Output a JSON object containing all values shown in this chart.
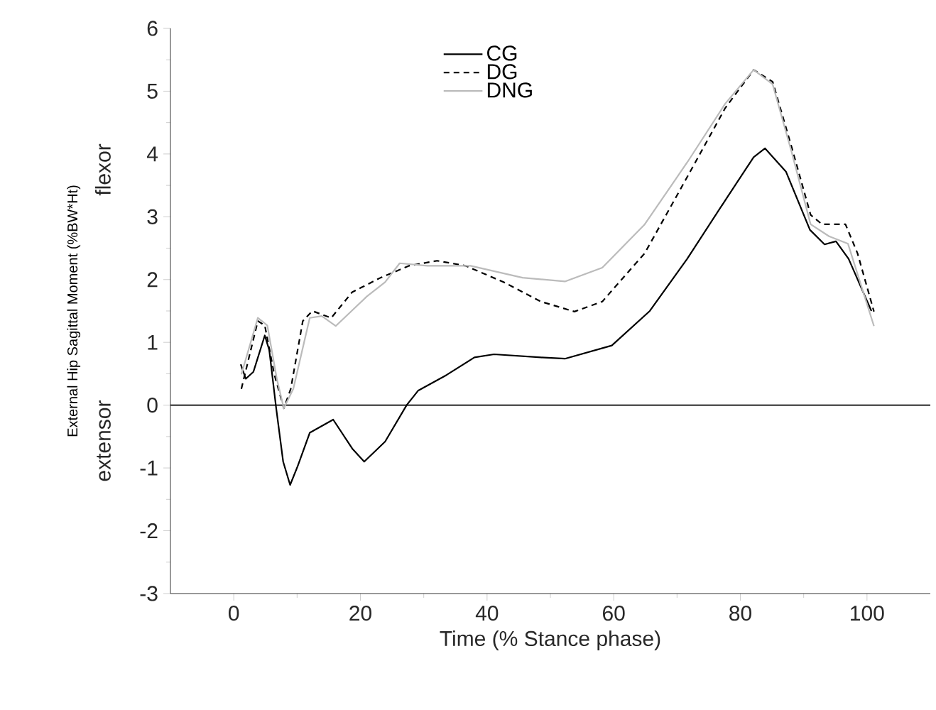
{
  "chart_data": {
    "type": "line",
    "xlabel": "Time (% Stance phase)",
    "ylabel": "External Hip Sagittal Moment (%BW*Ht)",
    "annotations": [
      "flexor",
      "extensor"
    ],
    "xlim": [
      -10,
      110
    ],
    "xticks": [
      0,
      20,
      40,
      60,
      80,
      100
    ],
    "ylim": [
      -3,
      6
    ],
    "yticks": [
      -3,
      -2,
      -1,
      0,
      1,
      2,
      3,
      4,
      5,
      6
    ],
    "grid": false,
    "legend": "top",
    "marker": "none",
    "ref_lines": [
      {
        "axis": "y",
        "value": 0,
        "color": "#000000",
        "line_style": "solid"
      }
    ],
    "series": [
      {
        "name": "CG",
        "color": "#000000",
        "line_style": "solid",
        "x": [
          1.1,
          1.9,
          3.1,
          4.9,
          5.6,
          6.7,
          7.8,
          8.9,
          10.1,
          12,
          15.7,
          18.7,
          20.6,
          23.9,
          27.3,
          29.1,
          33.6,
          38,
          41.1,
          48.5,
          52.3,
          59.7,
          65.7,
          71.6,
          77.6,
          82.1,
          83.9,
          87.2,
          91,
          93.3,
          95.1,
          97.1,
          100.7
        ],
        "values": [
          0.65,
          0.42,
          0.53,
          1.11,
          0.88,
          -0.05,
          -0.9,
          -1.27,
          -0.97,
          -0.44,
          -0.23,
          -0.69,
          -0.9,
          -0.58,
          0,
          0.23,
          0.48,
          0.76,
          0.81,
          0.76,
          0.74,
          0.95,
          1.5,
          2.33,
          3.26,
          3.95,
          4.09,
          3.72,
          2.79,
          2.56,
          2.61,
          2.33,
          1.5
        ]
      },
      {
        "name": "DG",
        "color": "#000000",
        "line_style": "dashed",
        "x": [
          1.2,
          3.8,
          4.9,
          6.4,
          7.9,
          9,
          10.9,
          12.4,
          15.4,
          18.7,
          23.2,
          27.7,
          32.1,
          36.6,
          42.6,
          48.5,
          53.8,
          58.2,
          64.9,
          71.7,
          77.6,
          82.1,
          85.1,
          88.1,
          91.1,
          92.9,
          96.6,
          98.5,
          101.1
        ],
        "values": [
          0.26,
          1.34,
          1.27,
          0.49,
          -0.05,
          0.26,
          1.34,
          1.5,
          1.39,
          1.8,
          2.03,
          2.22,
          2.3,
          2.22,
          1.96,
          1.65,
          1.49,
          1.65,
          2.42,
          3.65,
          4.73,
          5.34,
          5.15,
          4.11,
          3.03,
          2.88,
          2.88,
          2.42,
          1.49
        ]
      },
      {
        "name": "DNG",
        "color": "#bbbbbb",
        "line_style": "solid",
        "x": [
          1.2,
          3.8,
          5.3,
          6.8,
          7.9,
          9.4,
          12,
          13.9,
          16.1,
          21,
          23.9,
          26.2,
          30.6,
          37.4,
          45.6,
          52.3,
          58.2,
          64.9,
          71.7,
          77.6,
          82.1,
          85.1,
          88.1,
          91.1,
          94,
          97,
          101.1
        ],
        "values": [
          0.49,
          1.39,
          1.27,
          0.42,
          -0.05,
          0.26,
          1.39,
          1.42,
          1.26,
          1.73,
          1.96,
          2.26,
          2.22,
          2.22,
          2.03,
          1.97,
          2.19,
          2.88,
          3.88,
          4.8,
          5.34,
          5.11,
          4.03,
          2.88,
          2.69,
          2.57,
          1.26
        ]
      }
    ]
  }
}
